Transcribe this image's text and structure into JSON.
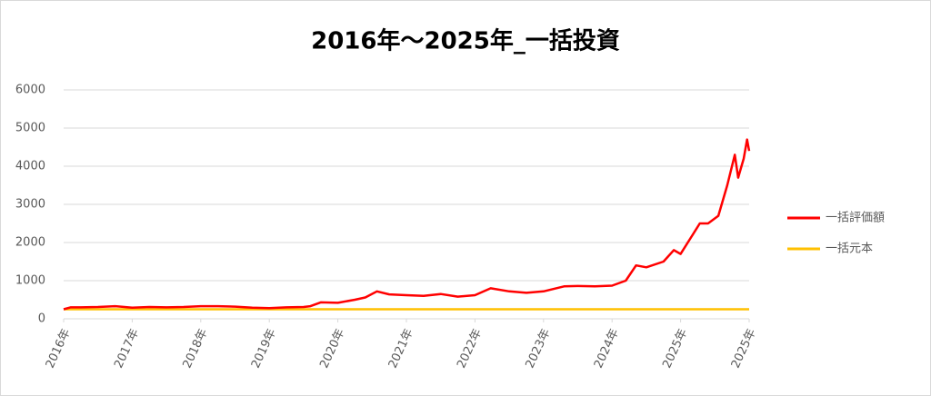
{
  "chart_data": {
    "type": "line",
    "title": "2016年～2025年_一括投資",
    "ylim": [
      0,
      6000
    ],
    "yticks": [
      0,
      1000,
      2000,
      3000,
      4000,
      5000,
      6000
    ],
    "grid": true,
    "xlim": [
      0,
      10
    ],
    "xticks": [
      {
        "value": 0,
        "label": "2016年"
      },
      {
        "value": 1,
        "label": "2017年"
      },
      {
        "value": 2,
        "label": "2018年"
      },
      {
        "value": 3,
        "label": "2019年"
      },
      {
        "value": 4,
        "label": "2020年"
      },
      {
        "value": 5,
        "label": "2021年"
      },
      {
        "value": 6,
        "label": "2022年"
      },
      {
        "value": 7,
        "label": "2023年"
      },
      {
        "value": 8,
        "label": "2024年"
      },
      {
        "value": 9,
        "label": "2025年"
      },
      {
        "value": 10,
        "label": "2025年"
      }
    ],
    "legend": "right",
    "series": [
      {
        "name": "一括評価額",
        "color": "#ff0000",
        "x": [
          0,
          0.1,
          0.25,
          0.5,
          0.75,
          1,
          1.25,
          1.5,
          1.75,
          2,
          2.25,
          2.5,
          2.75,
          3,
          3.25,
          3.5,
          3.6,
          3.75,
          4,
          4.25,
          4.4,
          4.57,
          4.75,
          5,
          5.25,
          5.5,
          5.75,
          6,
          6.23,
          6.5,
          6.75,
          7,
          7.3,
          7.5,
          7.75,
          8,
          8.2,
          8.35,
          8.5,
          8.75,
          8.9,
          9.0,
          9.28,
          9.4,
          9.55,
          9.68,
          9.79,
          9.84,
          9.92,
          9.97,
          10
        ],
        "values": [
          250,
          300,
          300,
          310,
          330,
          290,
          310,
          300,
          310,
          330,
          330,
          320,
          290,
          280,
          300,
          310,
          330,
          430,
          420,
          500,
          560,
          720,
          640,
          620,
          600,
          650,
          580,
          620,
          800,
          720,
          680,
          720,
          850,
          860,
          850,
          870,
          1000,
          1400,
          1350,
          1500,
          1800,
          1700,
          2500,
          2500,
          2700,
          3500,
          4300,
          3700,
          4200,
          4700,
          4400
        ]
      },
      {
        "name": "一括元本",
        "color": "#ffc000",
        "x": [
          0,
          10
        ],
        "values": [
          250,
          250
        ]
      }
    ]
  }
}
